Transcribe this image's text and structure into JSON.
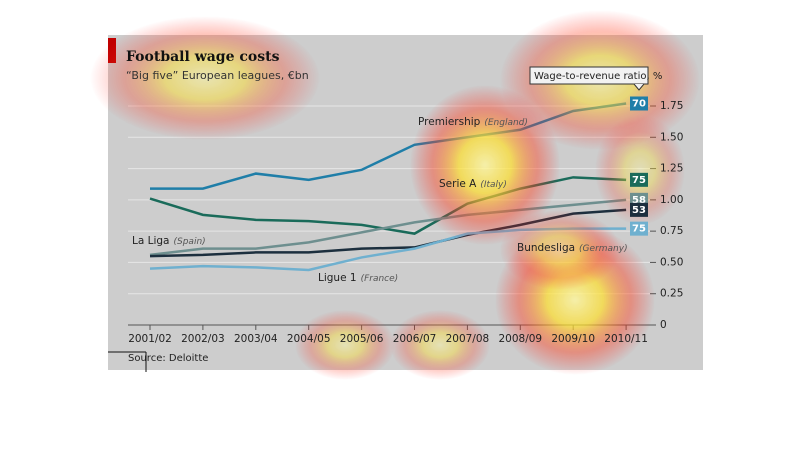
{
  "chart_data": {
    "type": "line",
    "title": "Football wage costs",
    "subtitle": "“Big five” European leagues, €bn",
    "ratio_legend": "Wage-to-revenue ratio, %",
    "source": "Source: Deloitte",
    "categories": [
      "2001/02",
      "2002/03",
      "2003/04",
      "2004/05",
      "2005/06",
      "2006/07",
      "2007/08",
      "2008/09",
      "2009/10",
      "2010/11"
    ],
    "series": [
      {
        "name": "Premiership",
        "country_label": "(England)",
        "color": "#1f7ea8",
        "ratio": 70,
        "values": [
          1.09,
          1.09,
          1.21,
          1.16,
          1.24,
          1.44,
          1.5,
          1.56,
          1.71,
          1.77
        ]
      },
      {
        "name": "Serie A",
        "country_label": "(Italy)",
        "color": "#1a6b5a",
        "ratio": 75,
        "values": [
          1.01,
          0.88,
          0.84,
          0.83,
          0.8,
          0.73,
          0.97,
          1.09,
          1.18,
          1.16
        ]
      },
      {
        "name": "Bundesliga",
        "country_label": "(Germany)",
        "color": "#6e8f8f",
        "ratio": 58,
        "values": [
          0.56,
          0.61,
          0.61,
          0.66,
          0.74,
          0.82,
          0.88,
          0.92,
          0.96,
          1.0
        ]
      },
      {
        "name": "La Liga",
        "country_label": "(Spain)",
        "color": "#1c2f3e",
        "ratio": 53,
        "values": [
          0.55,
          0.56,
          0.58,
          0.58,
          0.61,
          0.62,
          0.72,
          0.8,
          0.89,
          0.92
        ]
      },
      {
        "name": "Ligue 1",
        "country_label": "(France)",
        "color": "#6fb0cf",
        "ratio": 75,
        "values": [
          0.45,
          0.47,
          0.46,
          0.44,
          0.54,
          0.61,
          0.73,
          0.76,
          0.77,
          0.77
        ]
      }
    ],
    "ylim": [
      0,
      1.75
    ],
    "yticks": [
      0,
      0.25,
      {
        "value": 0.5,
        "label": "0.50"
      },
      0.75,
      {
        "value": 1,
        "label": "1.00"
      },
      1.25,
      {
        "value": 1.5,
        "label": "1.50"
      },
      1.75
    ],
    "grid": true
  }
}
